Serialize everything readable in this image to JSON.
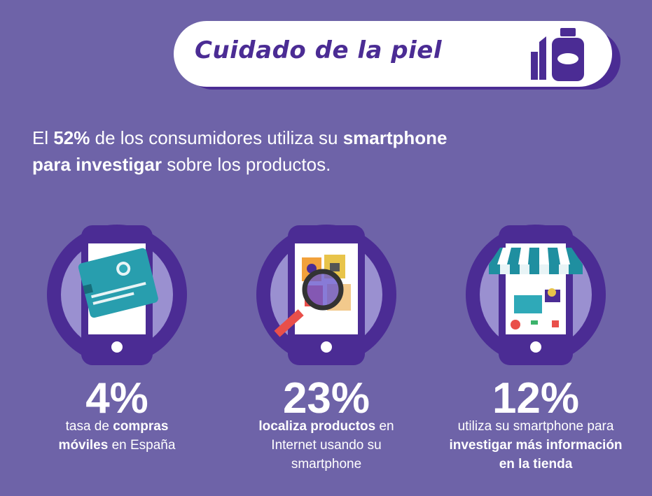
{
  "header": {
    "title": "Cuidado de la piel",
    "icon": "skincare-products-icon"
  },
  "intro": {
    "part1": "El ",
    "highlight1": "52%",
    "part2": " de los consumidores utiliza su ",
    "highlight2": "smartphone",
    "highlight3": "para investigar",
    "part3": " sobre los productos."
  },
  "stats": [
    {
      "value": "4%",
      "desc_plain1": "tasa de ",
      "desc_bold1": "compras",
      "desc_bold2": "móviles",
      "desc_plain2": " en España",
      "icon": "credit-card-phone-icon"
    },
    {
      "value": "23%",
      "desc_bold1": "localiza productos",
      "desc_plain1": " en",
      "desc_plain2": "Internet usando su",
      "desc_plain3": "smartphone",
      "icon": "product-search-phone-icon"
    },
    {
      "value": "12%",
      "desc_plain1": "utiliza su smartphone para",
      "desc_bold1": "investigar más información",
      "desc_bold2": "en la tienda",
      "icon": "store-phone-icon"
    }
  ],
  "colors": {
    "background": "#6e63a8",
    "dark_purple": "#4b2c94",
    "circle_light": "#9a90d0",
    "teal": "#1f8fa0",
    "white": "#ffffff"
  }
}
